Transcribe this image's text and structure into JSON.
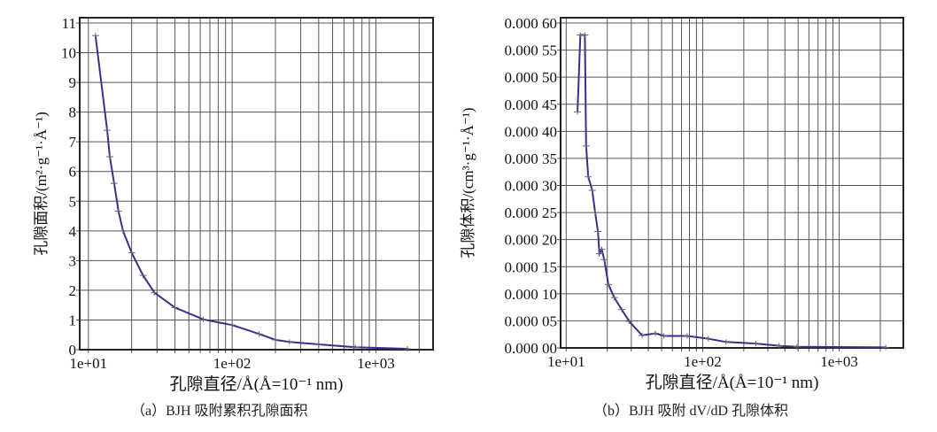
{
  "chart_data": [
    {
      "type": "line",
      "title": "",
      "caption": "（a）BJH 吸附累积孔隙面积",
      "xlabel": "孔隙直径/Å(Å=10⁻¹ nm)",
      "ylabel": "孔隙面积/(m²·g⁻¹·Å⁻¹)",
      "xscale": "log",
      "xlim": [
        8.7,
        2500
      ],
      "ylim": [
        0,
        11
      ],
      "grid": true,
      "xticks": [
        {
          "value": 10,
          "label": "1e+01"
        },
        {
          "value": 100,
          "label": "1e+02"
        },
        {
          "value": 1000,
          "label": "1e+03"
        }
      ],
      "yticks": [
        {
          "value": 0,
          "label": "0"
        },
        {
          "value": 1,
          "label": "1"
        },
        {
          "value": 2,
          "label": "2"
        },
        {
          "value": 3,
          "label": "3"
        },
        {
          "value": 4,
          "label": "4"
        },
        {
          "value": 5,
          "label": "5"
        },
        {
          "value": 6,
          "label": "6"
        },
        {
          "value": 7,
          "label": "7"
        },
        {
          "value": 8,
          "label": "8"
        },
        {
          "value": 9,
          "label": "9"
        },
        {
          "value": 10,
          "label": "10"
        },
        {
          "value": 11,
          "label": "11"
        }
      ],
      "series": [
        {
          "name": "BJH adsorption cumulative pore area",
          "color": "#3a2f8a",
          "x": [
            11.2,
            13.5,
            14.1,
            15.1,
            16.2,
            17.4,
            20,
            24,
            28.8,
            40,
            63,
            100,
            154,
            200,
            250,
            400,
            720,
            1660
          ],
          "y": [
            10.58,
            7.39,
            6.5,
            5.6,
            4.66,
            4.0,
            3.26,
            2.5,
            1.92,
            1.42,
            1.02,
            0.83,
            0.53,
            0.33,
            0.26,
            0.18,
            0.08,
            0.03
          ]
        }
      ]
    },
    {
      "type": "line",
      "title": "",
      "caption": "（b）BJH 吸附 dV/dD 孔隙体积",
      "xlabel": "孔隙直径/Å(Å=10⁻¹ nm)",
      "ylabel": "孔隙体积/(cm³·g⁻¹·Å⁻¹)",
      "xscale": "log",
      "xlim": [
        9.1,
        2950
      ],
      "ylim": [
        0,
        0.0006
      ],
      "grid": true,
      "xticks": [
        {
          "value": 10,
          "label": "1e+01"
        },
        {
          "value": 100,
          "label": "1e+02"
        },
        {
          "value": 1000,
          "label": "1e+03"
        }
      ],
      "yticks": [
        {
          "value": 0,
          "label": "0.000 00"
        },
        {
          "value": 5e-05,
          "label": "0.000 05"
        },
        {
          "value": 0.0001,
          "label": "0.000 10"
        },
        {
          "value": 0.00015,
          "label": "0.000 15"
        },
        {
          "value": 0.0002,
          "label": "0.000 20"
        },
        {
          "value": 0.00025,
          "label": "0.000 25"
        },
        {
          "value": 0.0003,
          "label": "0.000 30"
        },
        {
          "value": 0.00035,
          "label": "0.000 35"
        },
        {
          "value": 0.0004,
          "label": "0.000 40"
        },
        {
          "value": 0.00045,
          "label": "0.000 45"
        },
        {
          "value": 0.0005,
          "label": "0.000 50"
        },
        {
          "value": 0.00055,
          "label": "0.000 55"
        },
        {
          "value": 0.0006,
          "label": "0.000 60"
        }
      ],
      "series": [
        {
          "name": "BJH adsorption dV/dD pore volume",
          "color": "#3a2f8a",
          "x": [
            12.1,
            12.7,
            13.7,
            14.0,
            14.5,
            15.5,
            16.3,
            17.1,
            17.5,
            18.2,
            19.0,
            20.4,
            22.5,
            25.5,
            28.9,
            36,
            45,
            52,
            77,
            110,
            148,
            245,
            363,
            490,
            2190
          ],
          "y": [
            0.000436,
            0.000578,
            0.000578,
            0.000373,
            0.000316,
            0.000291,
            0.00025,
            0.000215,
            0.000174,
            0.000182,
            0.000163,
            0.000117,
            9.3e-05,
            7.1e-05,
            4.9e-05,
            2.3e-05,
            2.7e-05,
            2.2e-05,
            2.2e-05,
            1.7e-05,
            1.1e-05,
            8e-06,
            4e-06,
            2e-06,
            1e-06
          ]
        }
      ]
    }
  ]
}
